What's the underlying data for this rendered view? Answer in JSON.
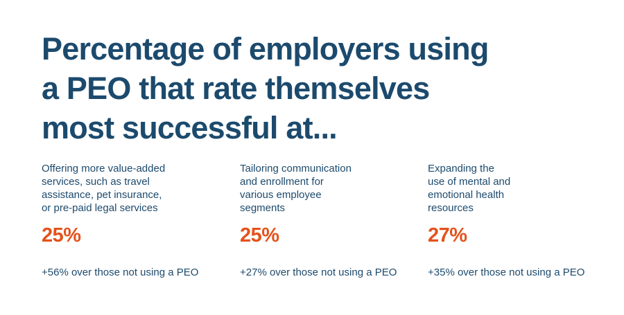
{
  "title": "Percentage of employers using\na PEO that rate themselves\nmost successful at...",
  "columns": [
    {
      "description": "Offering more value-added\nservices, such as travel\nassistance, pet insurance,\nor pre-paid legal services",
      "value": "25%",
      "comparison": "+56% over those not using a PEO"
    },
    {
      "description": "Tailoring communication\nand enrollment for\nvarious employee\nsegments",
      "value": "25%",
      "comparison": "+27% over those not using a PEO"
    },
    {
      "description": "Expanding the\nuse of mental and\nemotional health\nresources",
      "value": "27%",
      "comparison": "+35% over those not using a PEO"
    }
  ],
  "colors": {
    "navy": "#1c4a6d",
    "orange": "#e4521b",
    "background": "#ffffff"
  },
  "chart_data": {
    "type": "table",
    "title": "Percentage of employers using a PEO that rate themselves most successful at...",
    "categories": [
      "Offering more value-added services, such as travel assistance, pet insurance, or pre-paid legal services",
      "Tailoring communication and enrollment for various employee segments",
      "Expanding the use of mental and emotional health resources"
    ],
    "values": [
      25,
      25,
      27
    ],
    "value_unit": "%",
    "comparisons_over_non_peo": [
      "+56%",
      "+27%",
      "+35%"
    ],
    "value_color": "#e4521b",
    "text_color": "#1c4a6d",
    "legend_position": "none",
    "grid": false
  }
}
